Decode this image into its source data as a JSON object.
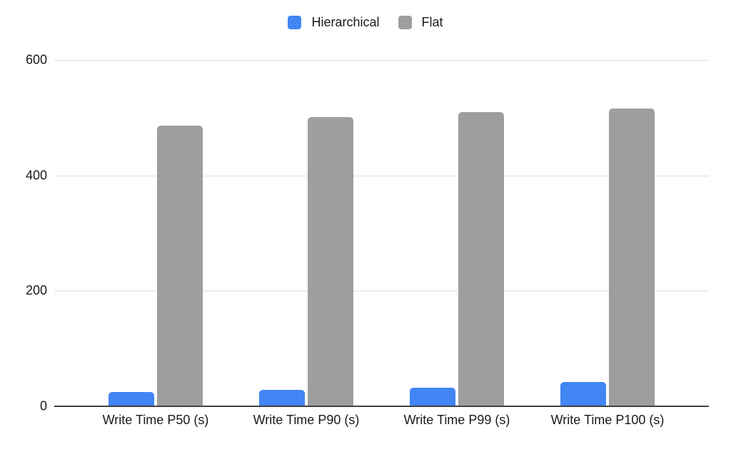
{
  "chart_data": {
    "type": "bar",
    "title": "",
    "xlabel": "",
    "ylabel": "",
    "categories": [
      "Write Time P50 (s)",
      "Write Time P90 (s)",
      "Write Time P99 (s)",
      "Write Time P100 (s)"
    ],
    "series": [
      {
        "name": "Hierarchical",
        "color": "#4285F4",
        "values": [
          25,
          28,
          32,
          42
        ]
      },
      {
        "name": "Flat",
        "color": "#9E9E9E",
        "values": [
          486,
          501,
          510,
          516
        ]
      }
    ],
    "ylim": [
      0,
      600
    ],
    "y_tick_step": 200,
    "y_tick_labels": [
      "0",
      "200",
      "400",
      "600"
    ],
    "grid": true,
    "legend_position": "top"
  },
  "colors": {
    "background": "#ffffff",
    "gridline": "#dddddd",
    "axis_line": "#424242",
    "text": "#1a1a1a"
  }
}
